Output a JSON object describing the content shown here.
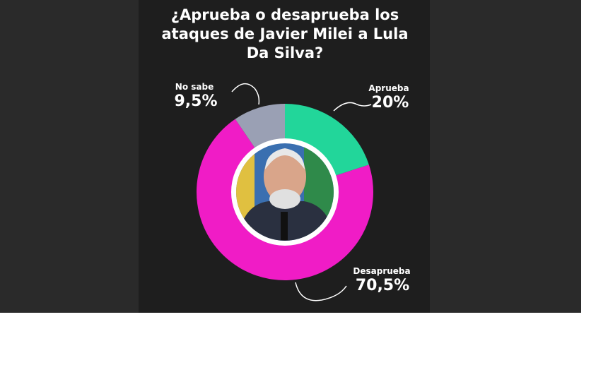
{
  "chart_data": {
    "type": "donut",
    "title": "¿Aprueba o desaprueba los ataques de Javier Milei a Lula Da Silva?",
    "categories": [
      "Aprueba",
      "Desaprueba",
      "No sabe"
    ],
    "values": [
      20,
      70.5,
      9.5
    ],
    "value_labels": [
      "20%",
      "70,5%",
      "9,5%"
    ],
    "colors": [
      "#22d69a",
      "#f01cc6",
      "#9aa0b4"
    ]
  }
}
